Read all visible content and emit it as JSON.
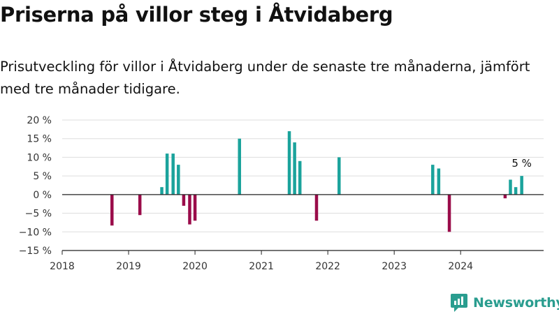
{
  "header": {
    "title": "Priserna på villor steg i Åtvidaberg",
    "subtitle": "Prisutveckling för villor i Åtvidaberg under de senaste tre månaderna, jämfört med tre månader tidigare."
  },
  "brand": {
    "name": "Newsworthy",
    "icon": "newsworthy-logo-icon"
  },
  "colors": {
    "positive": "#1ba39c",
    "negative": "#9a0c4a",
    "grid": "#dddddd",
    "axis": "#222222",
    "brand": "#2a9d8f"
  },
  "chart_data": {
    "type": "bar",
    "title": "Priserna på villor steg i Åtvidaberg",
    "xlabel": "",
    "ylabel": "",
    "ylim": [
      -15,
      20
    ],
    "yticks": [
      20,
      15,
      10,
      5,
      0,
      -5,
      -10,
      -15
    ],
    "ytick_labels": [
      "20 %",
      "15 %",
      "10 %",
      "5 %",
      "0 %",
      "−5 %",
      "−10 %",
      "−15 %"
    ],
    "xlim": [
      2018,
      2025.25
    ],
    "xticks": [
      "2018",
      "2019",
      "2020",
      "2021",
      "2022",
      "2023",
      "2024"
    ],
    "grid": true,
    "legend": "none",
    "series": [
      {
        "x": [
          2018.75,
          2019.17,
          2019.5,
          2019.58,
          2019.67,
          2019.75,
          2019.83,
          2019.92,
          2020.0,
          2020.67,
          2021.42,
          2021.5,
          2021.58,
          2021.83,
          2022.17,
          2023.58,
          2023.67,
          2023.83,
          2024.67,
          2024.75,
          2024.83,
          2024.92
        ],
        "values": [
          -8.3,
          -5.5,
          2,
          11,
          11,
          8,
          -3,
          -8,
          -7,
          15,
          17,
          14,
          9,
          -7,
          10,
          8,
          7,
          -10,
          -1,
          4,
          2,
          5
        ]
      }
    ],
    "annotations": [
      {
        "x": 2024.92,
        "y": 5,
        "text": "5 %"
      }
    ]
  }
}
